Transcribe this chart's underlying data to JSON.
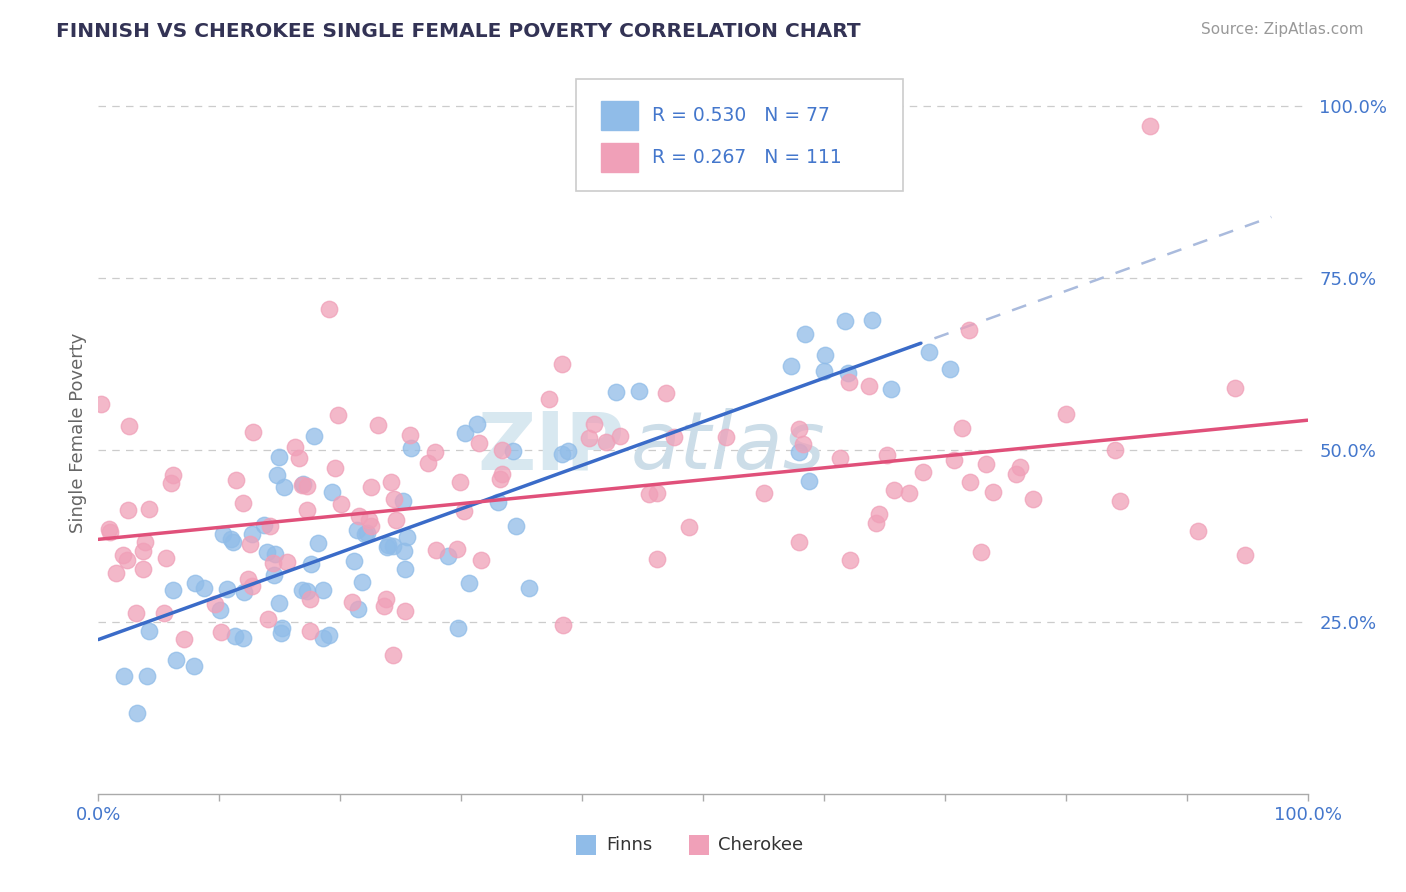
{
  "title": "FINNISH VS CHEROKEE SINGLE FEMALE POVERTY CORRELATION CHART",
  "source_text": "Source: ZipAtlas.com",
  "ylabel": "Single Female Poverty",
  "color_blue": "#90bce8",
  "color_pink": "#f0a0b8",
  "color_blue_line": "#3a6bc8",
  "color_pink_line": "#e0507a",
  "color_title": "#333355",
  "grid_color": "#cccccc",
  "legend_r1": "R = 0.530",
  "legend_n1": "N = 77",
  "legend_r2": "R = 0.267",
  "legend_n2": "N = 111",
  "color_axis_text": "#4477cc"
}
